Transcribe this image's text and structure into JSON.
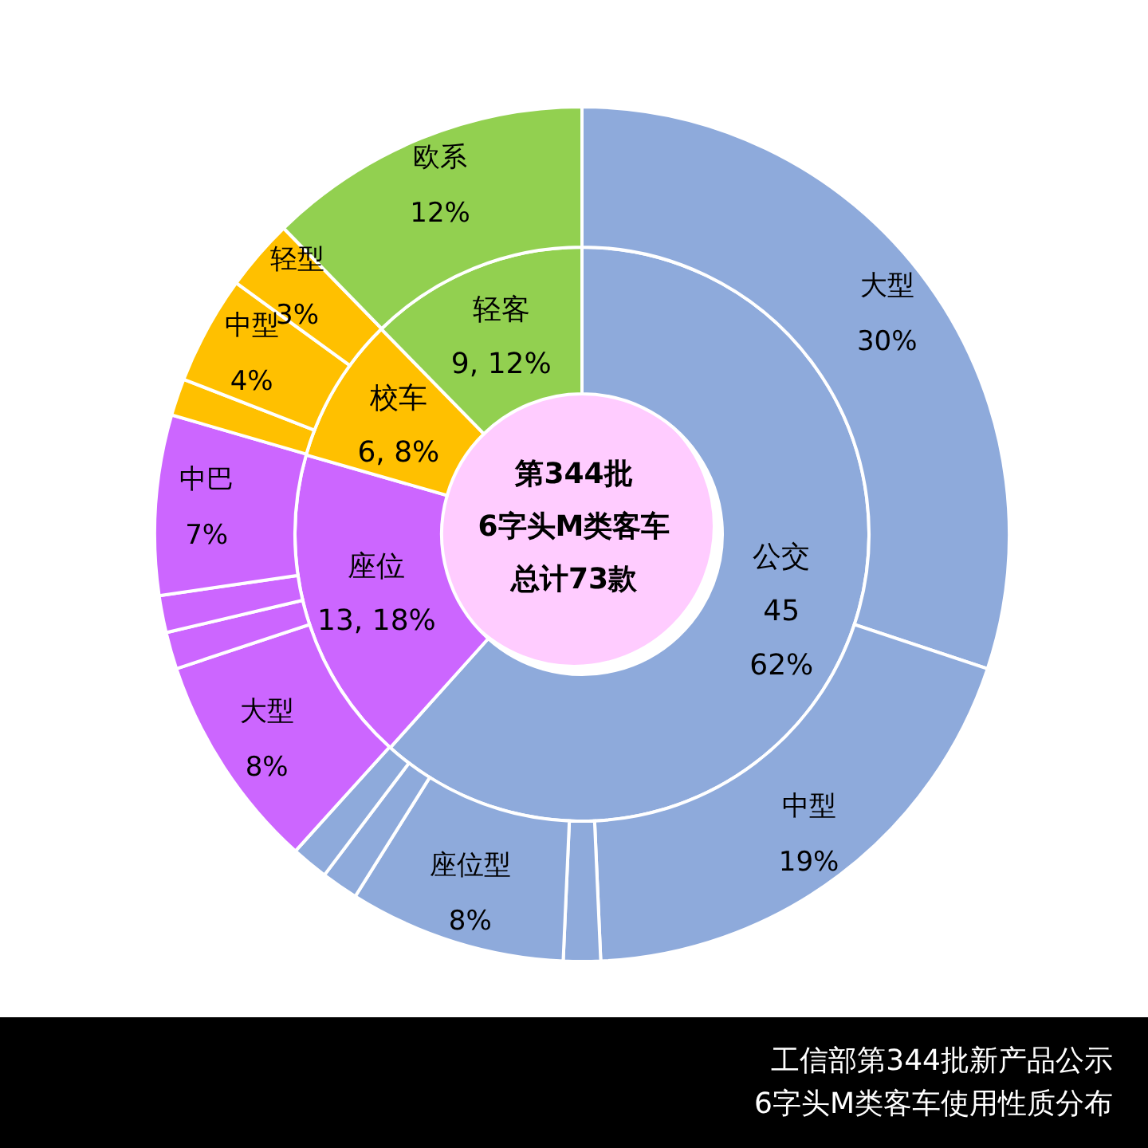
{
  "chart_data": [
    {
      "type": "donut",
      "title": "第344批",
      "subtitle": "6字头M类客车",
      "annotations": [
        "总计73款"
      ],
      "categories": [
        "公交",
        "座位",
        "校车",
        "轻客"
      ],
      "values": [
        45,
        13,
        6,
        9
      ],
      "colors": [
        "#8eaadb",
        "#cc66ff",
        "#ffc000",
        "#92d050"
      ],
      "value_labels": [
        "45\n62%",
        "13, 18%",
        "6, 8%",
        "9, 12%"
      ]
    },
    {
      "type": "donut",
      "categories": [
        "大型",
        "中型",
        null,
        "座位型",
        null,
        null,
        "大型",
        null,
        null,
        "中巴",
        null,
        "中型",
        "轻型",
        "欧系"
      ],
      "values": [
        30.1,
        19.2,
        1.4,
        8.2,
        1.4,
        1.4,
        8.2,
        1.4,
        1.4,
        6.8,
        1.4,
        4.1,
        2.7,
        12.3
      ],
      "colors": [
        "#8eaadb",
        "#8eaadb",
        "#8eaadb",
        "#8eaadb",
        "#8eaadb",
        "#8eaadb",
        "#cc66ff",
        "#cc66ff",
        "#cc66ff",
        "#cc66ff",
        "#ffc000",
        "#ffc000",
        "#ffc000",
        "#92d050"
      ],
      "value_labels": [
        "30%",
        "19%",
        null,
        "8%",
        null,
        null,
        "8%",
        null,
        null,
        "7%",
        null,
        "4%",
        "3%",
        "12%"
      ],
      "annotations": [
        "工信部第344批新产品公示",
        "6字头M类客车使用性质分布"
      ]
    }
  ]
}
